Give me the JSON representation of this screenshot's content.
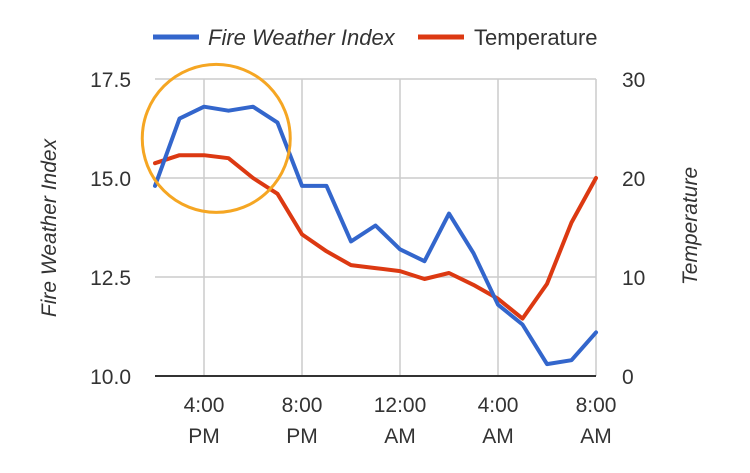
{
  "chart_data": {
    "type": "line",
    "x": [
      "2:00 PM",
      "3:00 PM",
      "4:00 PM",
      "5:00 PM",
      "6:00 PM",
      "7:00 PM",
      "8:00 PM",
      "9:00 PM",
      "10:00 PM",
      "11:00 PM",
      "12:00 AM",
      "1:00 AM",
      "2:00 AM",
      "3:00 AM",
      "4:00 AM",
      "5:00 AM",
      "6:00 AM",
      "7:00 AM",
      "8:00 AM"
    ],
    "x_ticks": [
      {
        "x": "4:00 PM",
        "line1": "4:00",
        "line2": "PM"
      },
      {
        "x": "8:00 PM",
        "line1": "8:00",
        "line2": "PM"
      },
      {
        "x": "12:00 AM",
        "line1": "12:00",
        "line2": "AM"
      },
      {
        "x": "4:00 AM",
        "line1": "4:00",
        "line2": "AM"
      },
      {
        "x": "8:00 AM",
        "line1": "8:00",
        "line2": "AM"
      }
    ],
    "series": [
      {
        "name": "Fire Weather Index",
        "axis": "left",
        "color": "#3366cc",
        "values": [
          14.8,
          16.5,
          16.8,
          16.7,
          16.8,
          16.4,
          14.8,
          14.8,
          13.4,
          13.8,
          13.2,
          12.9,
          14.1,
          13.1,
          11.8,
          11.3,
          10.3,
          10.4,
          11.1
        ]
      },
      {
        "name": "Temperature",
        "axis": "right",
        "color": "#dc3912",
        "values": [
          21.5,
          22.3,
          22.3,
          22.0,
          20.0,
          18.4,
          14.3,
          12.6,
          11.2,
          10.9,
          10.6,
          9.8,
          10.4,
          9.2,
          7.8,
          5.8,
          9.3,
          15.5,
          20.0
        ]
      }
    ],
    "left_axis": {
      "title": "Fire Weather Index",
      "ylim": [
        10.0,
        17.5
      ],
      "ticks": [
        10.0,
        12.5,
        15.0,
        17.5
      ],
      "tick_labels": [
        "10.0",
        "12.5",
        "15.0",
        "17.5"
      ]
    },
    "right_axis": {
      "title": "Temperature",
      "ylim": [
        0,
        30
      ],
      "ticks": [
        0,
        10,
        20,
        30
      ],
      "tick_labels": [
        "0",
        "10",
        "20",
        "30"
      ]
    },
    "grid": true,
    "legend_position": "top",
    "annotation": {
      "type": "circle",
      "color": "#f5a623",
      "center_x": "4:30 PM",
      "center_y_left": 16.0
    }
  }
}
